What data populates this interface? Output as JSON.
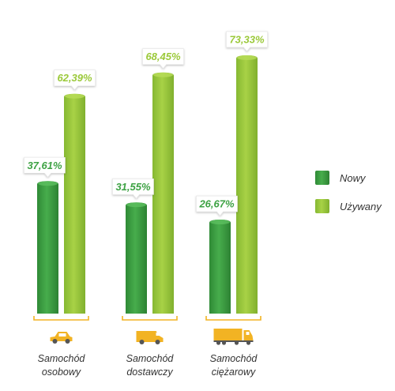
{
  "chart_data": {
    "type": "bar",
    "categories": [
      [
        "Samochód",
        "osobowy"
      ],
      [
        "Samochód",
        "dostawczy"
      ],
      [
        "Samochód",
        "ciężarowy"
      ]
    ],
    "category_icons": [
      "car-icon",
      "van-icon",
      "truck-icon"
    ],
    "series": [
      {
        "name": "Nowy",
        "values": [
          37.61,
          31.55,
          26.67
        ],
        "labels": [
          "37,61%",
          "31,55%",
          "26,67%"
        ],
        "color": "#3ea244"
      },
      {
        "name": "Używany",
        "values": [
          62.39,
          68.45,
          73.33
        ],
        "labels": [
          "62,39%",
          "68,45%",
          "73,33%"
        ],
        "color": "#9bc93a"
      }
    ],
    "ylim": [
      0,
      80
    ],
    "grid": false,
    "legend_position": "right",
    "accent_colors": {
      "baseline": "#f2b323",
      "icon": "#f2b323"
    }
  }
}
